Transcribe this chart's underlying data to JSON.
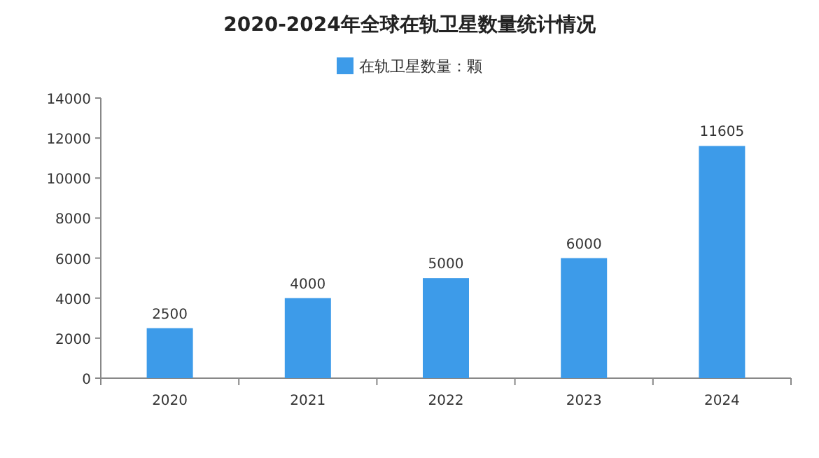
{
  "chart_data": {
    "type": "bar",
    "title": "2020-2024年全球在轨卫星数量统计情况",
    "categories": [
      "2020",
      "2021",
      "2022",
      "2023",
      "2024"
    ],
    "series": [
      {
        "name": "在轨卫星数量：颗",
        "color": "#3d9be9",
        "values": [
          2500,
          4000,
          5000,
          6000,
          11605
        ]
      }
    ],
    "ylim": [
      0,
      14000
    ],
    "yticks": [
      0,
      2000,
      4000,
      6000,
      8000,
      10000,
      12000,
      14000
    ],
    "data_labels": true,
    "legend": "top",
    "grid": false
  }
}
